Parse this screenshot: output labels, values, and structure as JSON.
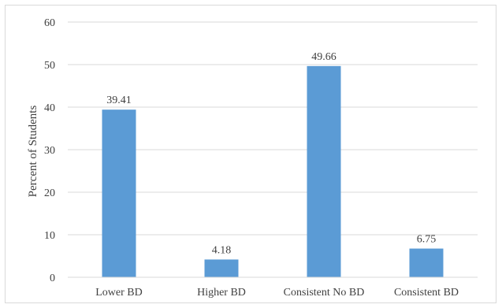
{
  "chart_data": {
    "type": "bar",
    "categories": [
      "Lower BD",
      "Higher BD",
      "Consistent No BD",
      "Consistent BD"
    ],
    "values": [
      39.41,
      4.18,
      49.66,
      6.75
    ],
    "data_labels": [
      "39.41",
      "4.18",
      "49.66",
      "6.75"
    ],
    "title": "",
    "xlabel": "",
    "ylabel": "Percent of Students",
    "ylim": [
      0,
      60
    ],
    "yticks": [
      0,
      10,
      20,
      30,
      40,
      50,
      60
    ],
    "grid": "horizontal",
    "legend": "none",
    "bar_color": "#5b9bd5"
  }
}
